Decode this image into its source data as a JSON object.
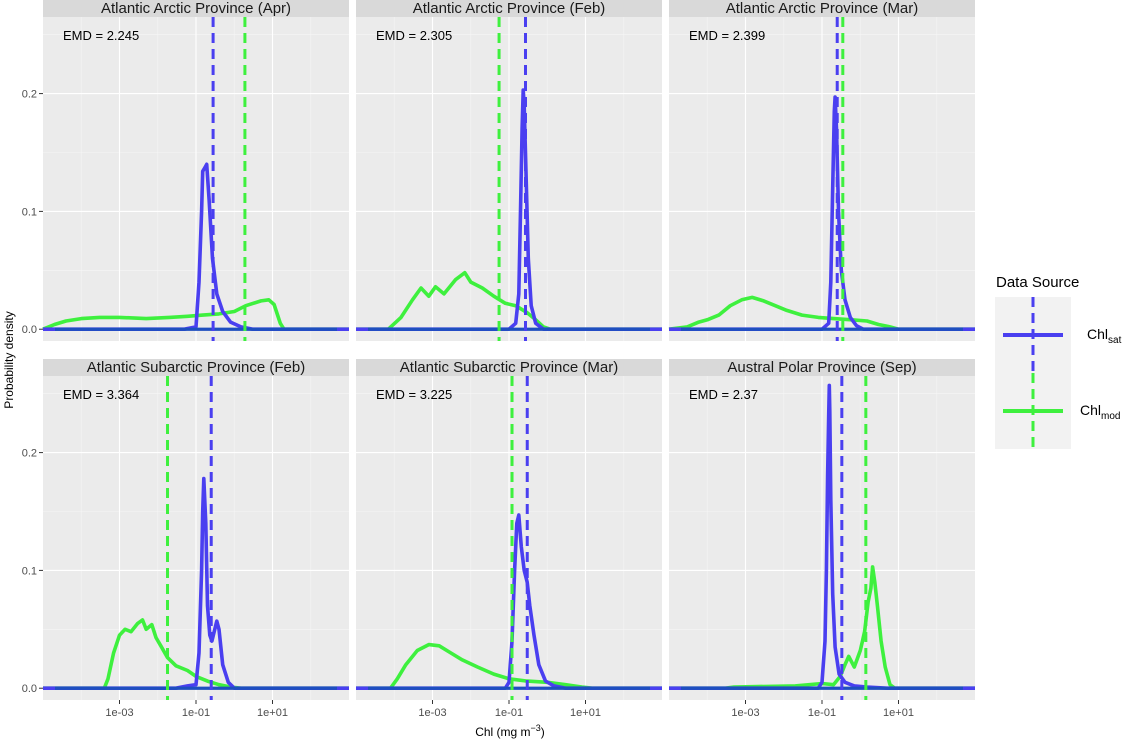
{
  "chart_data": {
    "type": "line",
    "facet_layout": "2x3",
    "xlabel": "Chl (mg m",
    "xlabel_sup": "−3",
    "xlabel_close": ")",
    "ylabel": "Probability density",
    "x_scale": "log10",
    "xlim": [
      1e-05,
      1000
    ],
    "ylim": [
      -0.01,
      0.265
    ],
    "grid": true,
    "x_ticks": [
      {
        "value": 0.001,
        "label": "1e-03"
      },
      {
        "value": 0.1,
        "label": "1e-01"
      },
      {
        "value": 10,
        "label": "1e+01"
      }
    ],
    "y_ticks": [
      {
        "value": 0.0,
        "label": "0.0"
      },
      {
        "value": 0.1,
        "label": "0.1"
      },
      {
        "value": 0.2,
        "label": "0.2"
      }
    ],
    "legend": {
      "title": "Data Source",
      "placement": "right",
      "entries": [
        {
          "label": "Chl",
          "sub": "sat",
          "color": "#4a3ff0"
        },
        {
          "label": "Chl",
          "sub": "mod",
          "color": "#3ef03e"
        }
      ]
    },
    "colors": {
      "sat": "#4a3ff0",
      "mod": "#3ef03e",
      "overlap": "#1e4fbf"
    },
    "panels": [
      {
        "title": "Atlantic Arctic Province (Apr)",
        "emd": "EMD = 2.245",
        "mean_sat": 0.28,
        "mean_mod": 1.9,
        "sat": [
          [
            1e-05,
            0
          ],
          [
            0.05,
            0
          ],
          [
            0.1,
            0.002
          ],
          [
            0.12,
            0.04
          ],
          [
            0.14,
            0.1
          ],
          [
            0.15,
            0.134
          ],
          [
            0.17,
            0.137
          ],
          [
            0.19,
            0.14
          ],
          [
            0.22,
            0.11
          ],
          [
            0.27,
            0.06
          ],
          [
            0.35,
            0.03
          ],
          [
            0.5,
            0.015
          ],
          [
            0.8,
            0.006
          ],
          [
            1.5,
            0.002
          ],
          [
            3,
            0
          ],
          [
            1000,
            0
          ]
        ],
        "mod": [
          [
            1e-05,
            0
          ],
          [
            2e-05,
            0.004
          ],
          [
            4e-05,
            0.007
          ],
          [
            0.0001,
            0.009
          ],
          [
            0.0003,
            0.01
          ],
          [
            0.001,
            0.01
          ],
          [
            0.005,
            0.009
          ],
          [
            0.02,
            0.01
          ],
          [
            0.06,
            0.011
          ],
          [
            0.15,
            0.012
          ],
          [
            0.4,
            0.013
          ],
          [
            1,
            0.015
          ],
          [
            2,
            0.02
          ],
          [
            5,
            0.024
          ],
          [
            8,
            0.025
          ],
          [
            11,
            0.021
          ],
          [
            16,
            0.005
          ],
          [
            20,
            0
          ],
          [
            1000,
            0
          ]
        ]
      },
      {
        "title": "Atlantic Arctic Province (Feb)",
        "emd": "EMD = 2.305",
        "mean_sat": 0.27,
        "mean_mod": 0.055,
        "sat": [
          [
            1e-05,
            0
          ],
          [
            0.1,
            0
          ],
          [
            0.15,
            0.005
          ],
          [
            0.18,
            0.03
          ],
          [
            0.2,
            0.1
          ],
          [
            0.22,
            0.17
          ],
          [
            0.235,
            0.203
          ],
          [
            0.25,
            0.19
          ],
          [
            0.28,
            0.13
          ],
          [
            0.32,
            0.06
          ],
          [
            0.38,
            0.02
          ],
          [
            0.5,
            0.005
          ],
          [
            0.8,
            0
          ],
          [
            1000,
            0
          ]
        ],
        "mod": [
          [
            1e-05,
            0
          ],
          [
            7e-05,
            0
          ],
          [
            0.00015,
            0.01
          ],
          [
            0.0003,
            0.025
          ],
          [
            0.0005,
            0.035
          ],
          [
            0.0008,
            0.028
          ],
          [
            0.0012,
            0.036
          ],
          [
            0.002,
            0.03
          ],
          [
            0.004,
            0.042
          ],
          [
            0.007,
            0.048
          ],
          [
            0.01,
            0.04
          ],
          [
            0.02,
            0.035
          ],
          [
            0.04,
            0.028
          ],
          [
            0.08,
            0.022
          ],
          [
            0.15,
            0.02
          ],
          [
            0.3,
            0.014
          ],
          [
            0.5,
            0.008
          ],
          [
            0.8,
            0.002
          ],
          [
            1.2,
            0
          ],
          [
            1000,
            0
          ]
        ]
      },
      {
        "title": "Atlantic Arctic Province (Mar)",
        "emd": "EMD = 2.399",
        "mean_sat": 0.25,
        "mean_mod": 0.35,
        "sat": [
          [
            1e-05,
            0
          ],
          [
            0.1,
            0
          ],
          [
            0.15,
            0.005
          ],
          [
            0.17,
            0.04
          ],
          [
            0.19,
            0.12
          ],
          [
            0.21,
            0.185
          ],
          [
            0.22,
            0.197
          ],
          [
            0.24,
            0.17
          ],
          [
            0.27,
            0.1
          ],
          [
            0.32,
            0.05
          ],
          [
            0.4,
            0.025
          ],
          [
            0.55,
            0.01
          ],
          [
            0.8,
            0.003
          ],
          [
            1.2,
            0
          ],
          [
            1000,
            0
          ]
        ],
        "mod": [
          [
            1e-05,
            0
          ],
          [
            3e-05,
            0.002
          ],
          [
            6e-05,
            0.006
          ],
          [
            0.0001,
            0.008
          ],
          [
            0.0002,
            0.012
          ],
          [
            0.0004,
            0.02
          ],
          [
            0.0008,
            0.025
          ],
          [
            0.0015,
            0.027
          ],
          [
            0.003,
            0.024
          ],
          [
            0.006,
            0.02
          ],
          [
            0.012,
            0.016
          ],
          [
            0.03,
            0.012
          ],
          [
            0.08,
            0.01
          ],
          [
            0.2,
            0.009
          ],
          [
            0.6,
            0.008
          ],
          [
            1.5,
            0.007
          ],
          [
            3,
            0.004
          ],
          [
            6,
            0.002
          ],
          [
            10,
            0
          ],
          [
            1000,
            0
          ]
        ]
      },
      {
        "title": "Atlantic Subarctic Province (Feb)",
        "emd": "EMD = 3.364",
        "mean_sat": 0.25,
        "mean_mod": 0.018,
        "sat": [
          [
            1e-05,
            0
          ],
          [
            0.03,
            0
          ],
          [
            0.06,
            0.002
          ],
          [
            0.1,
            0.003
          ],
          [
            0.12,
            0.03
          ],
          [
            0.14,
            0.1
          ],
          [
            0.15,
            0.15
          ],
          [
            0.16,
            0.178
          ],
          [
            0.18,
            0.14
          ],
          [
            0.2,
            0.07
          ],
          [
            0.23,
            0.045
          ],
          [
            0.26,
            0.04
          ],
          [
            0.3,
            0.048
          ],
          [
            0.35,
            0.057
          ],
          [
            0.4,
            0.05
          ],
          [
            0.5,
            0.02
          ],
          [
            0.7,
            0.005
          ],
          [
            1,
            0
          ],
          [
            1000,
            0
          ]
        ],
        "mod": [
          [
            1e-05,
            0
          ],
          [
            0.0004,
            0
          ],
          [
            0.0005,
            0.008
          ],
          [
            0.0007,
            0.03
          ],
          [
            0.001,
            0.045
          ],
          [
            0.0014,
            0.05
          ],
          [
            0.002,
            0.048
          ],
          [
            0.003,
            0.055
          ],
          [
            0.004,
            0.058
          ],
          [
            0.005,
            0.05
          ],
          [
            0.007,
            0.054
          ],
          [
            0.009,
            0.043
          ],
          [
            0.012,
            0.036
          ],
          [
            0.018,
            0.026
          ],
          [
            0.03,
            0.019
          ],
          [
            0.06,
            0.015
          ],
          [
            0.1,
            0.01
          ],
          [
            0.2,
            0.006
          ],
          [
            0.4,
            0.003
          ],
          [
            0.8,
            0.001
          ],
          [
            1.5,
            0
          ],
          [
            1000,
            0
          ]
        ]
      },
      {
        "title": "Atlantic Subarctic Province (Mar)",
        "emd": "EMD = 3.225",
        "mean_sat": 0.3,
        "mean_mod": 0.12,
        "sat": [
          [
            1e-05,
            0
          ],
          [
            0.08,
            0
          ],
          [
            0.1,
            0.005
          ],
          [
            0.12,
            0.04
          ],
          [
            0.14,
            0.1
          ],
          [
            0.16,
            0.14
          ],
          [
            0.18,
            0.147
          ],
          [
            0.21,
            0.12
          ],
          [
            0.25,
            0.1
          ],
          [
            0.3,
            0.09
          ],
          [
            0.35,
            0.07
          ],
          [
            0.45,
            0.045
          ],
          [
            0.6,
            0.02
          ],
          [
            0.9,
            0.006
          ],
          [
            1.5,
            0.002
          ],
          [
            3,
            0
          ],
          [
            1000,
            0
          ]
        ],
        "mod": [
          [
            1e-05,
            0
          ],
          [
            8e-05,
            0
          ],
          [
            0.00012,
            0.008
          ],
          [
            0.0002,
            0.02
          ],
          [
            0.0004,
            0.032
          ],
          [
            0.0008,
            0.037
          ],
          [
            0.0015,
            0.036
          ],
          [
            0.003,
            0.03
          ],
          [
            0.006,
            0.024
          ],
          [
            0.015,
            0.018
          ],
          [
            0.04,
            0.012
          ],
          [
            0.1,
            0.008
          ],
          [
            0.3,
            0.006
          ],
          [
            1,
            0.005
          ],
          [
            3,
            0.003
          ],
          [
            8,
            0.001
          ],
          [
            15,
            0
          ],
          [
            1000,
            0
          ]
        ]
      },
      {
        "title": "Austral Polar Province (Sep)",
        "emd": "EMD = 2.37",
        "mean_sat": 0.33,
        "mean_mod": 1.4,
        "sat": [
          [
            1e-05,
            0
          ],
          [
            0.08,
            0
          ],
          [
            0.1,
            0.005
          ],
          [
            0.12,
            0.04
          ],
          [
            0.13,
            0.1
          ],
          [
            0.14,
            0.18
          ],
          [
            0.15,
            0.232
          ],
          [
            0.155,
            0.257
          ],
          [
            0.16,
            0.235
          ],
          [
            0.17,
            0.16
          ],
          [
            0.19,
            0.08
          ],
          [
            0.22,
            0.035
          ],
          [
            0.28,
            0.012
          ],
          [
            0.4,
            0.005
          ],
          [
            0.7,
            0.002
          ],
          [
            1.5,
            0.001
          ],
          [
            5,
            0
          ],
          [
            1000,
            0
          ]
        ],
        "mod": [
          [
            1e-05,
            0
          ],
          [
            0.0003,
            0
          ],
          [
            0.0005,
            0.001
          ],
          [
            0.02,
            0.002
          ],
          [
            0.1,
            0.004
          ],
          [
            0.2,
            0.003
          ],
          [
            0.3,
            0.01
          ],
          [
            0.4,
            0.02
          ],
          [
            0.5,
            0.027
          ],
          [
            0.7,
            0.018
          ],
          [
            1,
            0.032
          ],
          [
            1.3,
            0.048
          ],
          [
            1.6,
            0.073
          ],
          [
            1.9,
            0.085
          ],
          [
            2.1,
            0.103
          ],
          [
            2.4,
            0.09
          ],
          [
            2.8,
            0.07
          ],
          [
            3.5,
            0.04
          ],
          [
            4.5,
            0.018
          ],
          [
            6,
            0.003
          ],
          [
            8,
            0
          ],
          [
            1000,
            0
          ]
        ]
      }
    ]
  }
}
